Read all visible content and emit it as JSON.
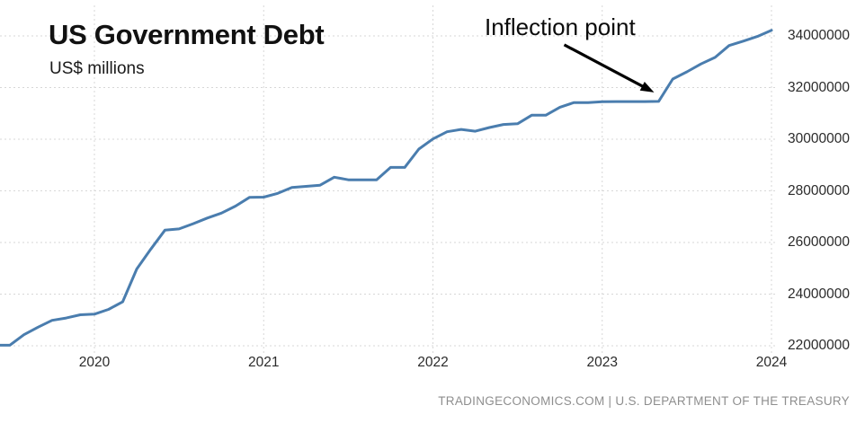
{
  "header": {
    "title": "US Government Debt",
    "subtitle": "US$ millions"
  },
  "annotation": {
    "text": "Inflection point"
  },
  "footer": {
    "text": "TRADINGECONOMICS.COM | U.S. DEPARTMENT OF THE TREASURY"
  },
  "colors": {
    "background": "#ffffff",
    "line": "#4a7dae",
    "grid": "#d7d7d7",
    "title_text": "#111111",
    "axis_text": "#2b2b2b",
    "annotation_arrow": "#000000",
    "footer_text": "#8e8e8e"
  },
  "chart_data": {
    "type": "line",
    "title": "US Government Debt",
    "units_label": "US$ millions",
    "grid": true,
    "legend": false,
    "ylim": [
      22000000,
      34800000
    ],
    "y_tick_values": [
      34000000,
      32000000,
      30000000,
      28000000,
      26000000,
      24000000,
      22000000
    ],
    "x_tick_labels": [
      "2020",
      "2021",
      "2022",
      "2023",
      "2024"
    ],
    "x": [
      "2019-06",
      "2019-07",
      "2019-08",
      "2019-09",
      "2019-10",
      "2019-11",
      "2019-12",
      "2020-01",
      "2020-02",
      "2020-03",
      "2020-04",
      "2020-05",
      "2020-06",
      "2020-07",
      "2020-08",
      "2020-09",
      "2020-10",
      "2020-11",
      "2020-12",
      "2021-01",
      "2021-02",
      "2021-03",
      "2021-04",
      "2021-05",
      "2021-06",
      "2021-07",
      "2021-08",
      "2021-09",
      "2021-10",
      "2021-11",
      "2021-12",
      "2022-01",
      "2022-02",
      "2022-03",
      "2022-04",
      "2022-05",
      "2022-06",
      "2022-07",
      "2022-08",
      "2022-09",
      "2022-10",
      "2022-11",
      "2022-12",
      "2023-01",
      "2023-02",
      "2023-03",
      "2023-04",
      "2023-05",
      "2023-06",
      "2023-07",
      "2023-08",
      "2023-09",
      "2023-10",
      "2023-11",
      "2023-12",
      "2024-01"
    ],
    "series": [
      {
        "name": "US Government Debt",
        "values": [
          22023000,
          22022000,
          22428000,
          22719000,
          22986000,
          23076000,
          23201000,
          23224000,
          23409000,
          23700000,
          24974000,
          25746000,
          26477000,
          26525000,
          26728000,
          26945000,
          27137000,
          27409000,
          27748000,
          27758000,
          27902000,
          28133000,
          28175000,
          28219000,
          28529000,
          28428000,
          28427000,
          28429000,
          28909000,
          28908000,
          29617000,
          30012000,
          30289000,
          30380000,
          30310000,
          30453000,
          30569000,
          30600000,
          30928000,
          30929000,
          31238000,
          31420000,
          31420000,
          31455000,
          31459000,
          31459000,
          31458000,
          31465000,
          32332000,
          32609000,
          32914000,
          33167000,
          33628000,
          33800000,
          33980000,
          34220000
        ]
      }
    ],
    "annotations": [
      {
        "text": "Inflection point",
        "target_x": "2023-05",
        "target_y": 31465000
      }
    ],
    "source": "TRADINGECONOMICS.COM | U.S. DEPARTMENT OF THE TREASURY"
  }
}
